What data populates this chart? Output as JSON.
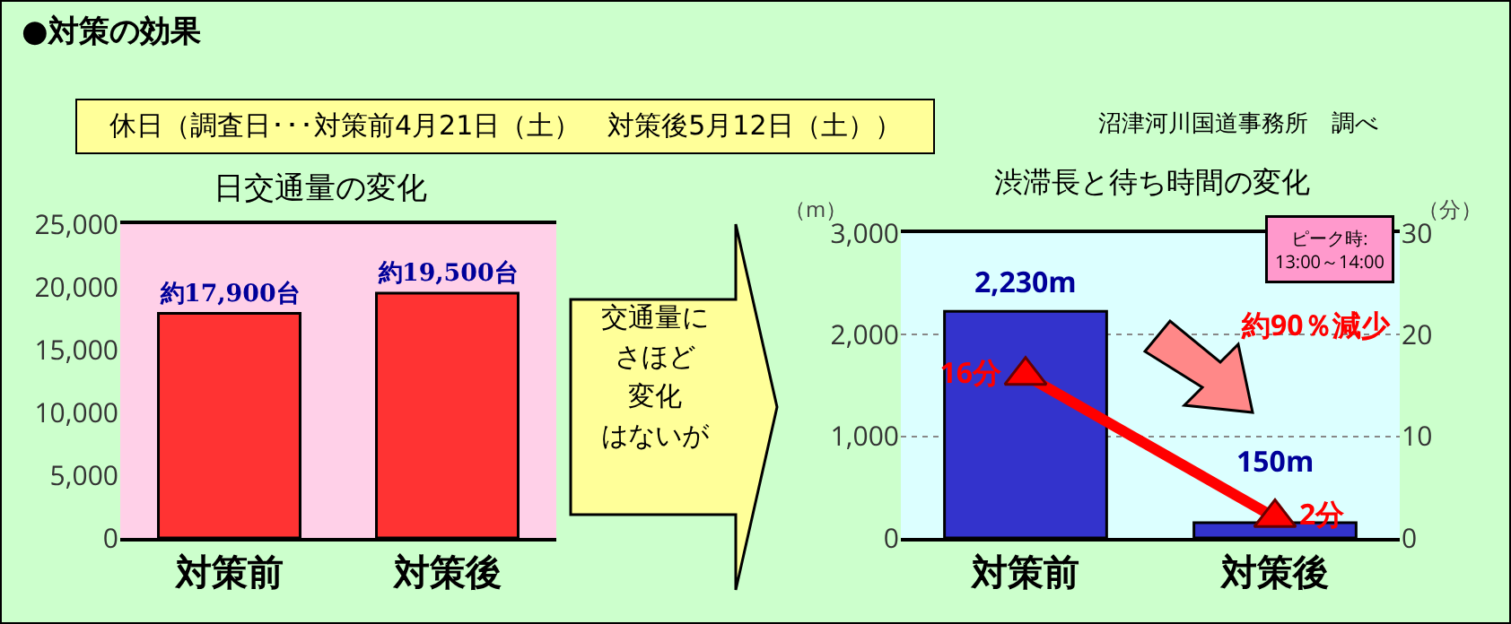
{
  "chart_data": [
    {
      "type": "bar",
      "title": "日交通量の変化",
      "categories": [
        "対策前",
        "対策後"
      ],
      "values": [
        17900,
        19500
      ],
      "color": "#ff3333",
      "value_labels": [
        "約17,900台",
        "約19,500台"
      ],
      "ylim": [
        0,
        25000
      ],
      "yticks": [
        {
          "value": 0,
          "label": "0"
        },
        {
          "value": 5000,
          "label": "5,000"
        },
        {
          "value": 10000,
          "label": "10,000"
        },
        {
          "value": 15000,
          "label": "15,000"
        },
        {
          "value": 20000,
          "label": "20,000"
        },
        {
          "value": 25000,
          "label": "25,000"
        }
      ],
      "grid": false,
      "annotations": [
        "●対策の効果",
        "休日（調査日･･･対策前4月21日（土）　対策後5月12日（土））",
        "沼津河川国道事務所　調べ",
        "交通量に",
        "さほど",
        "変化",
        "はないが"
      ]
    },
    {
      "type": "bar",
      "title": "渋滞長と待ち時間の変化",
      "categories": [
        "対策前",
        "対策後"
      ],
      "ylabel": "（m）",
      "y2label": "（分）",
      "series": [
        {
          "color": "#3333cc",
          "values": [
            2230,
            150
          ],
          "value_labels": [
            "2,230m",
            "150m"
          ]
        },
        {
          "type": "line",
          "axis": "y2",
          "color": "#ff0000",
          "values": [
            16,
            2
          ],
          "value_labels": [
            "16分",
            "2分"
          ]
        }
      ],
      "marker": "triangle",
      "ylim": [
        0,
        3000
      ],
      "yticks": [
        {
          "value": 0,
          "label": "0"
        },
        {
          "value": 1000,
          "label": "1,000"
        },
        {
          "value": 2000,
          "label": "2,000"
        },
        {
          "value": 3000,
          "label": "3,000"
        }
      ],
      "y2lim": [
        0,
        30
      ],
      "y2ticks": [
        0,
        10,
        20,
        30
      ],
      "grid": "y",
      "annotations": [
        "約90％減少",
        "ピーク時:\n13:00～14:00"
      ]
    }
  ]
}
